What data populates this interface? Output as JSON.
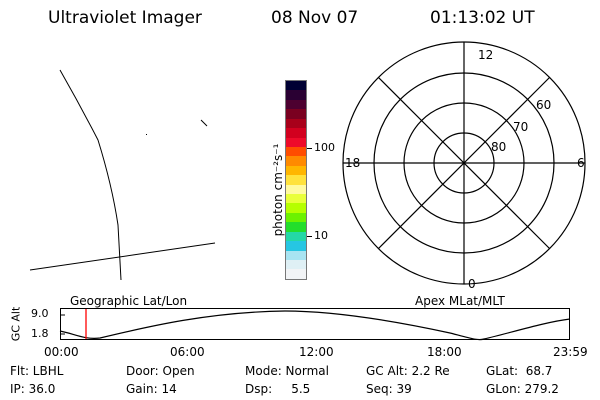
{
  "header": {
    "title": "Ultraviolet Imager",
    "date": "08 Nov 07",
    "time": "01:13:02 UT"
  },
  "colorbar": {
    "label": "photon cm⁻²s⁻¹",
    "tick_100": "100",
    "tick_10": "10",
    "colors": [
      "#000033",
      "#2a0033",
      "#4d0030",
      "#7a0020",
      "#a8001a",
      "#d2001f",
      "#ee0a2a",
      "#ff4d00",
      "#ff8a00",
      "#ffb600",
      "#ffe23d",
      "#fffaa0",
      "#e9ff3a",
      "#b6ff00",
      "#6cf200",
      "#23de2b",
      "#24d8a6",
      "#26c6e2",
      "#a8e4f2",
      "#dff0f5",
      "#f2f4f6"
    ]
  },
  "polar": {
    "mlt_top": "12",
    "mlt_bottom": "0",
    "mlt_left": "18",
    "mlt_right": "6",
    "lat_60": "60",
    "lat_70": "70",
    "lat_80": "80"
  },
  "panel_labels": {
    "geographic": "Geographic Lat/Lon",
    "apex": "Apex MLat/MLT"
  },
  "altitude_plot": {
    "ylabel": "GC Alt",
    "ytick_top": "9.0",
    "ytick_bottom": "1.8",
    "xticks": [
      "00:00",
      "06:00",
      "12:00",
      "18:00",
      "23:59"
    ],
    "marker_time": "01:13",
    "marker_color": "#ff0000"
  },
  "info": {
    "row1": {
      "filter": "Flt: LBHL",
      "door": "Door: Open",
      "mode": "Mode: Normal",
      "gc_alt": "GC Alt: 2.2 Re",
      "glat": "GLat:  68.7"
    },
    "row2": {
      "ip": "IP: 36.0",
      "gain": "Gain: 14",
      "dsp": "Dsp:     5.5",
      "seq": "Seq: 39",
      "glon": "GLon: 279.2"
    }
  }
}
